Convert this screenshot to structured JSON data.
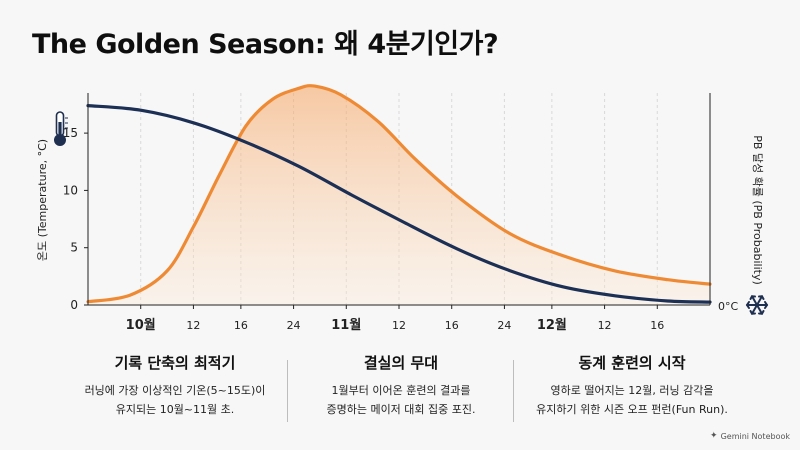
{
  "title": "The Golden Season: 왜 4분기인가?",
  "chart_data": {
    "type": "line",
    "ylabel_left": "온도 (Temperature, °C)",
    "ylabel_right": "PB 달성 확률 (PB Probability)",
    "y_left_ticks": [
      "0",
      "5",
      "10",
      "15"
    ],
    "ylim_left": [
      0,
      18.5
    ],
    "y_right_annotation": "0°C",
    "x_ticks": [
      {
        "label": "10월",
        "bold": true,
        "day": 10
      },
      {
        "label": "12",
        "bold": false,
        "day": 20
      },
      {
        "label": "16",
        "bold": false,
        "day": 29
      },
      {
        "label": "24",
        "bold": false,
        "day": 39
      },
      {
        "label": "11월",
        "bold": true,
        "day": 49
      },
      {
        "label": "12",
        "bold": false,
        "day": 59
      },
      {
        "label": "16",
        "bold": false,
        "day": 69
      },
      {
        "label": "24",
        "bold": false,
        "day": 79
      },
      {
        "label": "12월",
        "bold": true,
        "day": 88
      },
      {
        "label": "12",
        "bold": false,
        "day": 98
      },
      {
        "label": "16",
        "bold": false,
        "day": 108
      }
    ],
    "xlim": [
      0,
      118
    ],
    "series": [
      {
        "name": "",
        "axis": "left",
        "color": "#1c2f55",
        "points": [
          [
            0,
            17.4
          ],
          [
            10,
            17.0
          ],
          [
            20,
            15.9
          ],
          [
            30,
            14.2
          ],
          [
            40,
            12.1
          ],
          [
            50,
            9.6
          ],
          [
            60,
            7.2
          ],
          [
            70,
            4.9
          ],
          [
            80,
            3.0
          ],
          [
            90,
            1.6
          ],
          [
            100,
            0.8
          ],
          [
            110,
            0.35
          ],
          [
            118,
            0.25
          ]
        ]
      },
      {
        "name": "",
        "axis": "right",
        "color": "#ef8a34",
        "fill": true,
        "points": [
          [
            0,
            0.02
          ],
          [
            8,
            0.05
          ],
          [
            15,
            0.16
          ],
          [
            20,
            0.36
          ],
          [
            25,
            0.6
          ],
          [
            30,
            0.82
          ],
          [
            35,
            0.94
          ],
          [
            40,
            0.99
          ],
          [
            43,
            1.0
          ],
          [
            48,
            0.96
          ],
          [
            55,
            0.84
          ],
          [
            62,
            0.67
          ],
          [
            70,
            0.5
          ],
          [
            80,
            0.33
          ],
          [
            90,
            0.23
          ],
          [
            100,
            0.16
          ],
          [
            110,
            0.12
          ],
          [
            118,
            0.1
          ]
        ]
      }
    ],
    "grid": "vertical dashed"
  },
  "columns": [
    {
      "heading": "기록 단축의 최적기",
      "lines": [
        "러닝에 가장 이상적인 기온(5~15도)이",
        "유지되는 10월~11월 초."
      ]
    },
    {
      "heading": "결실의 무대",
      "lines": [
        "1월부터 이어온 훈련의 결과를",
        "증명하는 메이저 대회 집중 포진."
      ]
    },
    {
      "heading": "동계 훈련의 시작",
      "lines": [
        "영하로 떨어지는 12월, 러닝 감각을",
        "유지하기 위한 시즌 오프 펀런(Fun Run)."
      ]
    }
  ],
  "brand": "Gemini Notebook",
  "icons": [
    "thermometer-icon",
    "snowflake-icon",
    "gemini-star-icon"
  ]
}
